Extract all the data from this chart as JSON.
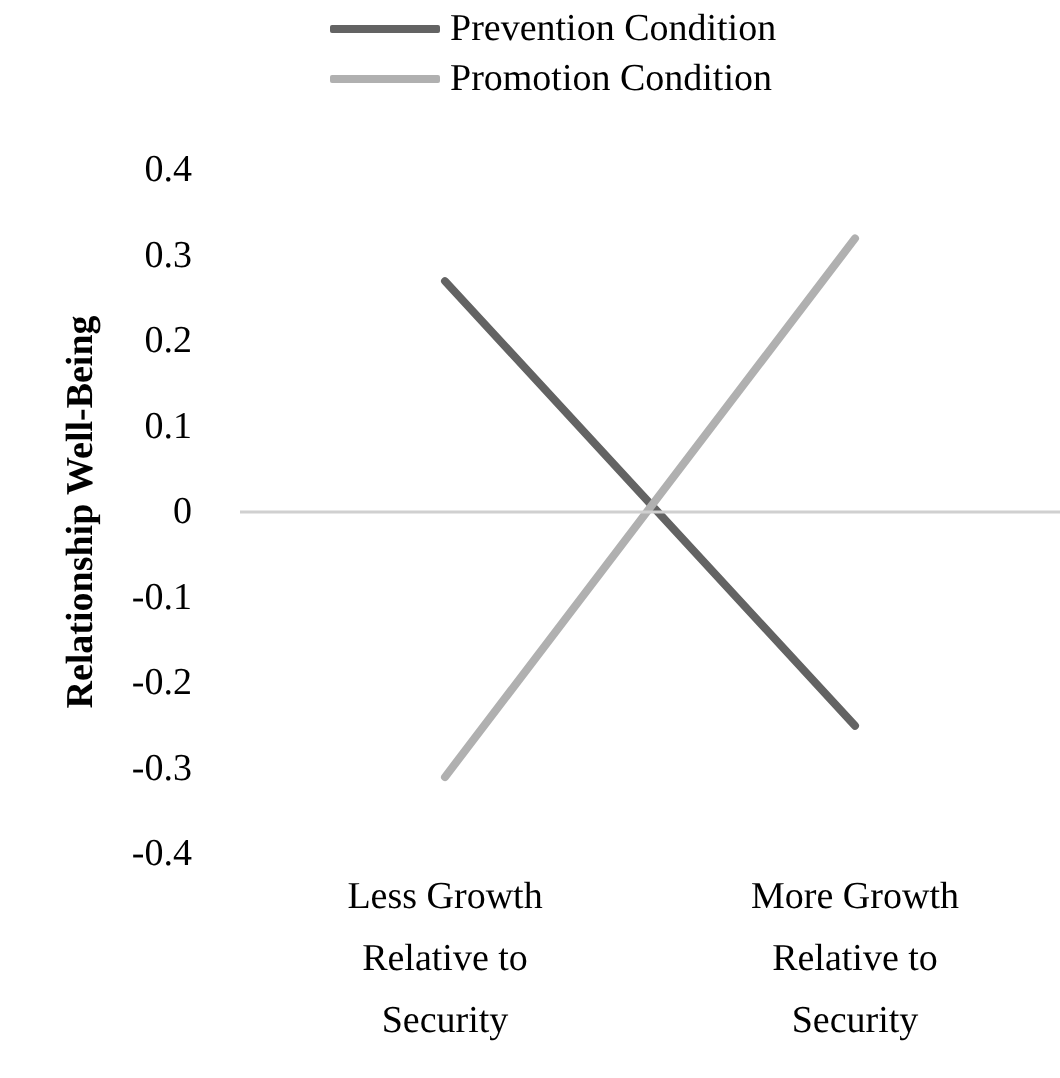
{
  "chart_data": {
    "type": "line",
    "ylabel": "Relationship Well-Being",
    "categories": [
      "Less Growth\nRelative to\nSecurity",
      "More Growth\nRelative to\nSecurity"
    ],
    "series": [
      {
        "name": "Prevention Condition",
        "color": "#636363",
        "values": [
          0.27,
          -0.25
        ]
      },
      {
        "name": "Promotion Condition",
        "color": "#b0b0b0",
        "values": [
          -0.31,
          0.32
        ]
      }
    ],
    "ylim": [
      -0.4,
      0.4
    ],
    "yticks": [
      -0.4,
      -0.3,
      -0.2,
      -0.1,
      0,
      0.1,
      0.2,
      0.3,
      0.4
    ],
    "ref_lines": [
      {
        "axis": "y",
        "value": 0,
        "color": "#d0d0d0"
      }
    ],
    "grid": false,
    "legend": "top",
    "marker": "none",
    "line_style": "solid"
  }
}
